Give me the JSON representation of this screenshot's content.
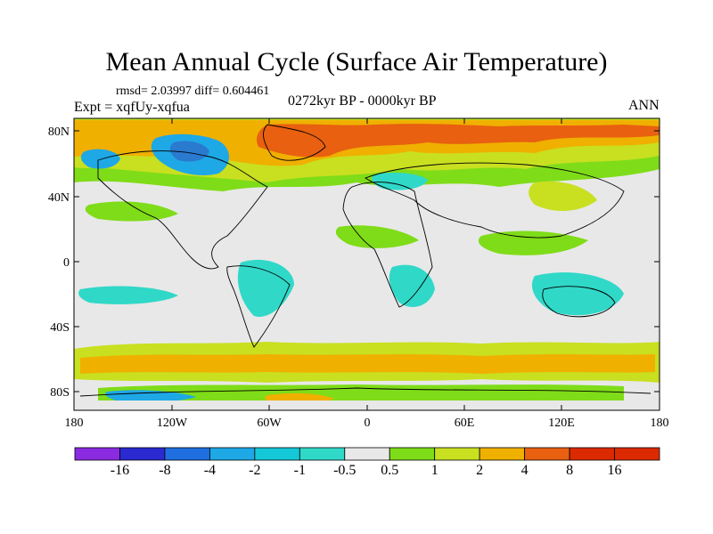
{
  "title": "Mean Annual Cycle (Surface Air Temperature)",
  "stats": "rmsd= 2.03997 diff= 0.604461",
  "expt": "Expt = xqfUy-xqfua",
  "period": "0272kyr BP - 0000kyr BP",
  "season": "ANN",
  "lat_labels": [
    "80N",
    "40N",
    "0",
    "40S",
    "80S"
  ],
  "lon_labels": [
    "180",
    "120W",
    "60W",
    "0",
    "60E",
    "120E",
    "180"
  ],
  "colorbar": {
    "labels": [
      "-16",
      "-8",
      "-4",
      "-2",
      "-1",
      "-0.5",
      "0.5",
      "1",
      "2",
      "4",
      "8",
      "16"
    ],
    "colors": [
      "#8a2be2",
      "#2a2ad0",
      "#1f6fe0",
      "#1ea8e6",
      "#14c8d8",
      "#30d8c8",
      "#e8e8e8",
      "#7fdc18",
      "#c8e020",
      "#f0b000",
      "#e86010",
      "#dc2a00"
    ]
  },
  "map_palette": {
    "ocean_neutral": "#e8e8e8",
    "cool_strong": "#2a7ad0",
    "cool": "#1ea8e6",
    "cool_light": "#30d8c8",
    "warm_light": "#7fdc18",
    "warm": "#c8e020",
    "warm_mid": "#f0b000",
    "warm_strong": "#e86010",
    "warmest": "#dc2a00"
  }
}
